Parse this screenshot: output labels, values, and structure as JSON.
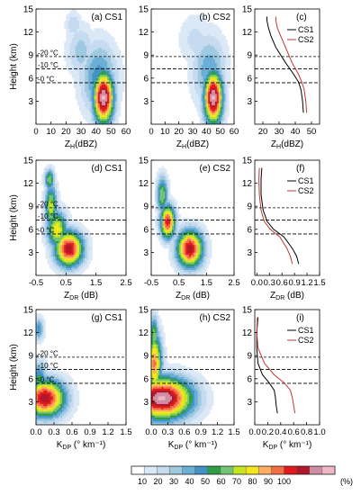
{
  "panels": [
    {
      "id": "a",
      "label": "(a) CS1",
      "type": "contour",
      "xlabel": "Z_H(dBZ)",
      "xlim": [
        0,
        60
      ],
      "xticks": [
        0,
        10,
        20,
        30,
        40,
        50,
        60
      ],
      "ylabel": "Height (km)",
      "ylim": [
        0,
        15
      ],
      "yticks": [
        3,
        6,
        9,
        12,
        15
      ],
      "isotherm_labels": [
        "-20 °C",
        "-10 °C",
        "-0 °C"
      ],
      "blobs": [
        {
          "x": 45,
          "y": 3.5,
          "sx": 5,
          "sy": 2.5,
          "peak": 0.95
        },
        {
          "x": 42,
          "y": 6,
          "sx": 9,
          "sy": 3.5,
          "peak": 0.35
        },
        {
          "x": 30,
          "y": 9.5,
          "sx": 7,
          "sy": 2.5,
          "peak": 0.22
        },
        {
          "x": 25,
          "y": 13,
          "sx": 4,
          "sy": 1.3,
          "peak": 0.18
        }
      ]
    },
    {
      "id": "b",
      "label": "(b) CS2",
      "type": "contour",
      "xlabel": "Z_H(dBZ)",
      "xlim": [
        0,
        60
      ],
      "xticks": [
        0,
        10,
        20,
        30,
        40,
        50,
        60
      ],
      "ylabel": "",
      "ylim": [
        0,
        15
      ],
      "yticks": [
        3,
        6,
        9,
        12,
        15
      ],
      "isotherm_labels": [],
      "blobs": [
        {
          "x": 45,
          "y": 3.5,
          "sx": 5,
          "sy": 2.5,
          "peak": 0.95
        },
        {
          "x": 42,
          "y": 7,
          "sx": 9,
          "sy": 3.5,
          "peak": 0.3
        },
        {
          "x": 32,
          "y": 11,
          "sx": 9,
          "sy": 2.5,
          "peak": 0.15
        }
      ]
    },
    {
      "id": "c",
      "label": "(c)",
      "type": "profile",
      "xlabel": "Z_H(dBZ)",
      "xlim": [
        15,
        55
      ],
      "xticks": [
        20,
        30,
        40,
        50
      ],
      "ylim": [
        0,
        15
      ],
      "yticks": [
        3,
        6,
        9,
        12,
        15
      ],
      "legend_position": "top-right",
      "series": [
        {
          "name": "CS1",
          "color": "#000000",
          "x": [
            45,
            44.5,
            43.5,
            42,
            39,
            34,
            28,
            25,
            23.5,
            22.5,
            22.5
          ],
          "y": [
            1.5,
            3,
            4.5,
            5.5,
            6.5,
            8,
            10,
            11.5,
            12.5,
            13.5,
            14
          ]
        },
        {
          "name": "CS2",
          "color": "#c0392b",
          "x": [
            47,
            46.5,
            45.5,
            44,
            42,
            38,
            34,
            31,
            29,
            28,
            28
          ],
          "y": [
            1.5,
            3,
            4.5,
            5.5,
            6.5,
            8,
            10,
            11.5,
            12.5,
            13.5,
            14
          ]
        }
      ]
    },
    {
      "id": "d",
      "label": "(d) CS1",
      "type": "contour",
      "xlabel": "Z_DR (dB)",
      "xlim": [
        -0.5,
        2.5
      ],
      "xticks": [
        -0.5,
        0.5,
        1.5,
        2.5
      ],
      "ylabel": "Height (km)",
      "ylim": [
        0,
        15
      ],
      "yticks": [
        3,
        6,
        9,
        12,
        15
      ],
      "isotherm_labels": [
        "-20 °C",
        "-10 °C",
        "-0 °C"
      ],
      "blobs": [
        {
          "x": 0.6,
          "y": 3.5,
          "sx": 0.35,
          "sy": 1.7,
          "peak": 0.85
        },
        {
          "x": 0.2,
          "y": 6,
          "sx": 0.25,
          "sy": 1.8,
          "peak": 0.6
        },
        {
          "x": 0.0,
          "y": 9,
          "sx": 0.15,
          "sy": 2.2,
          "peak": 0.55
        },
        {
          "x": -0.05,
          "y": 12.5,
          "sx": 0.12,
          "sy": 1.0,
          "peak": 0.5
        }
      ]
    },
    {
      "id": "e",
      "label": "(e) CS2",
      "type": "contour",
      "xlabel": "Z_DR (dB)",
      "xlim": [
        -0.5,
        2.5
      ],
      "xticks": [
        -0.5,
        0.5,
        1.5,
        2.5
      ],
      "ylabel": "",
      "ylim": [
        0,
        15
      ],
      "yticks": [
        3,
        6,
        9,
        12,
        15
      ],
      "isotherm_labels": [],
      "blobs": [
        {
          "x": 0.9,
          "y": 3.5,
          "sx": 0.35,
          "sy": 1.8,
          "peak": 0.85
        },
        {
          "x": 0.1,
          "y": 7,
          "sx": 0.2,
          "sy": 1.6,
          "peak": 0.8
        },
        {
          "x": -0.1,
          "y": 10.5,
          "sx": 0.15,
          "sy": 1.8,
          "peak": 0.5
        }
      ]
    },
    {
      "id": "f",
      "label": "(f)",
      "type": "profile",
      "xlabel": "Z_DR (dB)",
      "xlim": [
        -0.05,
        1.5
      ],
      "xticks": [
        0.0,
        0.3,
        0.6,
        0.9,
        1.2,
        1.5
      ],
      "xtick_labels": [
        "0.0",
        "0.3",
        "0.6",
        "0.9",
        "1.2",
        "1.5"
      ],
      "ylim": [
        0,
        15
      ],
      "yticks": [
        3,
        6,
        9,
        12,
        15
      ],
      "legend_position": "top-right",
      "series": [
        {
          "name": "CS1",
          "color": "#000000",
          "x": [
            1.0,
            0.95,
            0.85,
            0.65,
            0.4,
            0.25,
            0.15,
            0.1,
            0.1,
            0.12
          ],
          "y": [
            1.5,
            2.5,
            3.5,
            5,
            6,
            7,
            8.5,
            10.5,
            12.5,
            14
          ]
        },
        {
          "name": "CS2",
          "color": "#c0392b",
          "x": [
            0.85,
            0.8,
            0.72,
            0.55,
            0.32,
            0.18,
            0.1,
            0.06,
            0.05,
            0.06
          ],
          "y": [
            1.5,
            2.5,
            3.5,
            5,
            6,
            7,
            8.5,
            10.5,
            12.5,
            14
          ]
        }
      ]
    },
    {
      "id": "g",
      "label": "(g) CS1",
      "type": "contour",
      "xlabel": "K_DP (° km⁻¹)",
      "xlim": [
        0,
        1.5
      ],
      "xticks": [
        0,
        0.3,
        0.6,
        0.9,
        1.2,
        1.5
      ],
      "xtick_labels": [
        "0.0",
        "0.3",
        "0.6",
        "0.9",
        "1.2",
        "1.5"
      ],
      "ylabel": "Height (km)",
      "ylim": [
        0,
        15
      ],
      "yticks": [
        3,
        6,
        9,
        12,
        15
      ],
      "isotherm_labels": [
        "-20 °C",
        "-10 °C",
        "-0 °C"
      ],
      "blobs": [
        {
          "x": 0.15,
          "y": 3.5,
          "sx": 0.25,
          "sy": 1.8,
          "peak": 0.85
        },
        {
          "x": 0.05,
          "y": 6,
          "sx": 0.1,
          "sy": 1.7,
          "peak": 0.4
        },
        {
          "x": 0.05,
          "y": 12.5,
          "sx": 0.06,
          "sy": 1.1,
          "peak": 0.35
        }
      ]
    },
    {
      "id": "h",
      "label": "(h) CS2",
      "type": "contour",
      "xlabel": "K_DP (° km⁻¹)",
      "xlim": [
        0,
        1.5
      ],
      "xticks": [
        0,
        0.3,
        0.6,
        0.9,
        1.2,
        1.5
      ],
      "xtick_labels": [
        "0.0",
        "0.3",
        "0.6",
        "0.9",
        "1.2",
        "1.5"
      ],
      "ylabel": "",
      "ylim": [
        0,
        15
      ],
      "yticks": [
        3,
        6,
        9,
        12,
        15
      ],
      "isotherm_labels": [],
      "blobs": [
        {
          "x": 0.2,
          "y": 3.5,
          "sx": 0.4,
          "sy": 2.0,
          "peak": 0.95
        },
        {
          "x": 0.06,
          "y": 8,
          "sx": 0.1,
          "sy": 3.0,
          "peak": 0.7
        },
        {
          "x": 0.05,
          "y": 11.5,
          "sx": 0.06,
          "sy": 2.0,
          "peak": 0.5
        }
      ]
    },
    {
      "id": "i",
      "label": "(i)",
      "type": "profile",
      "xlabel": "K_DP (° km⁻¹)",
      "xlim": [
        0,
        1.0
      ],
      "xticks": [
        0,
        0.2,
        0.4,
        0.6,
        0.8,
        1.0
      ],
      "xtick_labels": [
        "0.0",
        "0.2",
        "0.4",
        "0.6",
        "0.8",
        "1.0"
      ],
      "ylim": [
        0,
        15
      ],
      "yticks": [
        3,
        6,
        9,
        12,
        15
      ],
      "legend_position": "top-right",
      "series": [
        {
          "name": "CS1",
          "color": "#000000",
          "x": [
            0.35,
            0.33,
            0.32,
            0.3,
            0.22,
            0.12,
            0.05,
            0.03,
            0.03,
            0.05
          ],
          "y": [
            1.5,
            2.5,
            3.5,
            4.5,
            5.5,
            6.5,
            8,
            10,
            12,
            14
          ]
        },
        {
          "name": "CS2",
          "color": "#c0392b",
          "x": [
            0.62,
            0.6,
            0.58,
            0.55,
            0.45,
            0.3,
            0.15,
            0.05,
            0.03,
            0.04
          ],
          "y": [
            1.5,
            2.5,
            3.5,
            4.5,
            5.5,
            6.5,
            8,
            10,
            12,
            14
          ]
        }
      ]
    }
  ],
  "isotherm_heights_km": [
    8.8,
    7.2,
    5.4
  ],
  "colorbar": {
    "ticks": [
      "10",
      "20",
      "30",
      "40",
      "50",
      "60",
      "70",
      "80",
      "90",
      "100"
    ],
    "unit": "(%)",
    "colors": [
      "#ffffff",
      "#dbe9f7",
      "#c6dbef",
      "#9ecae1",
      "#6baed6",
      "#4292c6",
      "#2f9e44",
      "#74c476",
      "#c7e61d",
      "#f5e61e",
      "#fdae61",
      "#f46d43",
      "#e31a1c",
      "#b2182b",
      "#d08ea4",
      "#f0b8c4"
    ]
  },
  "chart_data": {
    "type": "heatmap",
    "description_panels": [
      "(a) CS1",
      "(b) CS2",
      "(c)",
      "(d) CS1",
      "(e) CS2",
      "(f)",
      "(g) CS1",
      "(h) CS2",
      "(i)"
    ],
    "ylabel": "Height (km)",
    "ylim": [
      0,
      15
    ],
    "profiles": {
      "ZH": {
        "CS1": [
          45,
          44.5,
          43.5,
          42,
          39,
          34,
          28,
          25,
          23.5,
          22.5,
          22.5
        ],
        "CS2": [
          47,
          46.5,
          45.5,
          44,
          42,
          38,
          34,
          31,
          29,
          28,
          28
        ]
      },
      "ZDR": {
        "CS1": [
          1.0,
          0.95,
          0.85,
          0.65,
          0.4,
          0.25,
          0.15,
          0.1,
          0.1,
          0.12
        ],
        "CS2": [
          0.85,
          0.8,
          0.72,
          0.55,
          0.32,
          0.18,
          0.1,
          0.06,
          0.05,
          0.06
        ]
      },
      "KDP": {
        "CS1": [
          0.35,
          0.33,
          0.32,
          0.3,
          0.22,
          0.12,
          0.05,
          0.03,
          0.03,
          0.05
        ],
        "CS2": [
          0.62,
          0.6,
          0.58,
          0.55,
          0.45,
          0.3,
          0.15,
          0.05,
          0.03,
          0.04
        ]
      }
    },
    "colorbar_range_percent": [
      0,
      100
    ]
  }
}
